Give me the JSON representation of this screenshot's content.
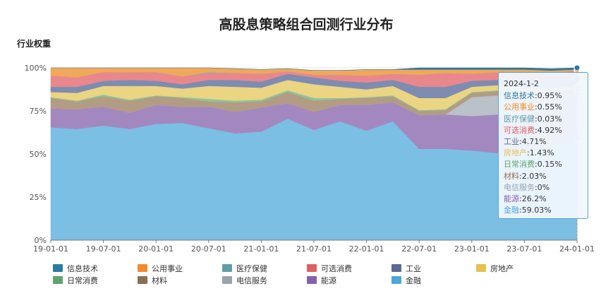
{
  "chart_data": {
    "type": "area",
    "stacked": true,
    "title": "高股息策略组合回测行业分布",
    "ylabel": "行业权重",
    "ylim": [
      0,
      100
    ],
    "yticks": [
      "0%",
      "25%",
      "50%",
      "75%",
      "100%"
    ],
    "xticks": [
      "19-01-01",
      "19-07-01",
      "20-01-01",
      "20-07-01",
      "21-01-01",
      "21-07-01",
      "22-01-01",
      "22-07-01",
      "23-01-01",
      "23-07-01",
      "24-01-01"
    ],
    "legend_position": "bottom",
    "series": [
      {
        "name": "金融",
        "color": "#7bbfe5",
        "values": [
          65.5,
          64.5,
          66.5,
          64.5,
          67.5,
          68,
          65,
          62,
          63,
          70.5,
          64,
          69,
          63.5,
          69,
          53,
          53,
          52,
          50.5,
          50.5,
          53.5,
          59.03
        ]
      },
      {
        "name": "能源",
        "color": "#a388c0",
        "values": [
          11,
          11.5,
          11,
          9.5,
          11,
          9.5,
          12.5,
          12.5,
          14,
          9,
          10.5,
          9.5,
          15,
          11,
          19.5,
          20,
          20,
          22.5,
          22,
          23,
          26.2
        ]
      },
      {
        "name": "电信服务",
        "color": "#b9c1c9",
        "values": [
          0,
          0,
          0,
          0,
          0,
          0,
          0,
          0,
          0,
          0,
          0,
          0,
          0,
          0,
          0,
          0,
          11,
          11,
          10,
          6,
          0
        ]
      },
      {
        "name": "材料",
        "color": "#b39c84",
        "values": [
          6,
          4.5,
          6,
          7,
          5,
          5,
          3,
          5.5,
          3.5,
          6.5,
          6.5,
          3.5,
          4,
          3.5,
          2.5,
          2.5,
          2.5,
          2.5,
          2.5,
          2.5,
          2.03
        ]
      },
      {
        "name": "日常消费",
        "color": "#8cc49a",
        "values": [
          0.5,
          0.5,
          1,
          0.5,
          0.5,
          0.5,
          1.5,
          1,
          1,
          1,
          1.5,
          0.5,
          0.5,
          0.5,
          0.5,
          0.5,
          0.5,
          0.5,
          0.5,
          0.5,
          0.15
        ]
      },
      {
        "name": "房地产",
        "color": "#ebd482",
        "values": [
          3,
          4.5,
          5,
          8,
          5.5,
          5,
          7.5,
          8,
          7,
          6,
          8,
          6.5,
          4.5,
          5.5,
          7,
          6.5,
          3,
          3,
          3.5,
          3,
          1.43
        ]
      },
      {
        "name": "工业",
        "color": "#7d8cb0",
        "values": [
          3,
          3.5,
          3,
          3.5,
          3,
          2.5,
          3.5,
          4,
          3.5,
          3.5,
          4,
          3.5,
          4,
          3.5,
          6.5,
          6.5,
          3.5,
          3,
          3.5,
          4,
          4.71
        ]
      },
      {
        "name": "可选消费",
        "color": "#e8888d",
        "values": [
          6.5,
          5.5,
          5,
          4.5,
          5,
          4.5,
          4,
          4,
          4.5,
          1.5,
          1.5,
          3.5,
          4,
          3.5,
          7,
          8,
          4,
          4.5,
          4.5,
          4.5,
          4.92
        ]
      },
      {
        "name": "医疗保健",
        "color": "#7fb3b8",
        "values": [
          0,
          0,
          0,
          0,
          0,
          0,
          0.5,
          0,
          0,
          0,
          0,
          0,
          0,
          0,
          0,
          0,
          0,
          0,
          0,
          0,
          0.03
        ]
      },
      {
        "name": "公用事业",
        "color": "#f0a85a",
        "values": [
          4.5,
          5.5,
          2.5,
          2.5,
          2.5,
          5,
          2.5,
          2.5,
          2.5,
          1.5,
          2.5,
          2.5,
          3.5,
          2.5,
          3,
          2,
          2.5,
          1.5,
          2,
          1.5,
          0.55
        ]
      },
      {
        "name": "信息技术",
        "color": "#2f7aa0",
        "values": [
          0,
          0,
          0,
          0,
          0,
          0,
          0,
          0,
          0,
          0,
          0,
          0,
          0,
          0,
          1,
          1,
          1,
          1,
          1,
          1,
          0.95
        ]
      }
    ],
    "legend": [
      {
        "name": "信息技术",
        "color": "#2a7ba3"
      },
      {
        "name": "公用事业",
        "color": "#f08c2e"
      },
      {
        "name": "医疗保健",
        "color": "#5f9ea4"
      },
      {
        "name": "可选消费",
        "color": "#e0605f"
      },
      {
        "name": "工业",
        "color": "#5a6b91"
      },
      {
        "name": "房地产",
        "color": "#e3c24f"
      },
      {
        "name": "日常消费",
        "color": "#5fa36f"
      },
      {
        "name": "材料",
        "color": "#8b6f55"
      },
      {
        "name": "电信服务",
        "color": "#98a3ad"
      },
      {
        "name": "能源",
        "color": "#8460ad"
      },
      {
        "name": "金融",
        "color": "#4fa6d8"
      }
    ]
  },
  "tooltip": {
    "date": "2024-1-2",
    "rows": [
      {
        "name": "信息技术",
        "value": "0.95%",
        "color": "#2a7ba3"
      },
      {
        "name": "公用事业",
        "value": "0.55%",
        "color": "#f08c2e"
      },
      {
        "name": "医疗保健",
        "value": "0.03%",
        "color": "#5f9ea4"
      },
      {
        "name": "可选消费",
        "value": "4.92%",
        "color": "#e0605f"
      },
      {
        "name": "工业",
        "value": "4.71%",
        "color": "#5a6b91"
      },
      {
        "name": "房地产",
        "value": "1.43%",
        "color": "#e3c24f"
      },
      {
        "name": "日常消费",
        "value": "0.15%",
        "color": "#5fa36f"
      },
      {
        "name": "材料",
        "value": "2.03%",
        "color": "#8b6f55"
      },
      {
        "name": "电信服务",
        "value": "0%",
        "color": "#98a3ad"
      },
      {
        "name": "能源",
        "value": "26.2%",
        "color": "#8460ad"
      },
      {
        "name": "金融",
        "value": "59.03%",
        "color": "#4fa6d8"
      }
    ]
  }
}
